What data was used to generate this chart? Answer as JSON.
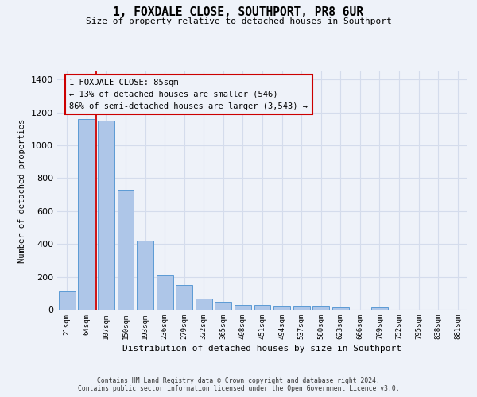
{
  "title": "1, FOXDALE CLOSE, SOUTHPORT, PR8 6UR",
  "subtitle": "Size of property relative to detached houses in Southport",
  "xlabel": "Distribution of detached houses by size in Southport",
  "ylabel": "Number of detached properties",
  "categories": [
    "21sqm",
    "64sqm",
    "107sqm",
    "150sqm",
    "193sqm",
    "236sqm",
    "279sqm",
    "322sqm",
    "365sqm",
    "408sqm",
    "451sqm",
    "494sqm",
    "537sqm",
    "580sqm",
    "623sqm",
    "666sqm",
    "709sqm",
    "752sqm",
    "795sqm",
    "838sqm",
    "881sqm"
  ],
  "values": [
    110,
    1160,
    1150,
    730,
    420,
    215,
    150,
    70,
    48,
    30,
    30,
    20,
    17,
    17,
    14,
    0,
    14,
    0,
    0,
    0,
    0
  ],
  "bar_color": "#aec6e8",
  "bar_edge_color": "#5b9bd5",
  "grid_color": "#d4dcec",
  "annotation_box_color": "#cc0000",
  "annotation_line_color": "#cc0000",
  "annotation_title": "1 FOXDALE CLOSE: 85sqm",
  "annotation_line1": "← 13% of detached houses are smaller (546)",
  "annotation_line2": "86% of semi-detached houses are larger (3,543) →",
  "ylim": [
    0,
    1450
  ],
  "yticks": [
    0,
    200,
    400,
    600,
    800,
    1000,
    1200,
    1400
  ],
  "footer1": "Contains HM Land Registry data © Crown copyright and database right 2024.",
  "footer2": "Contains public sector information licensed under the Open Government Licence v3.0.",
  "background_color": "#eef2f9"
}
